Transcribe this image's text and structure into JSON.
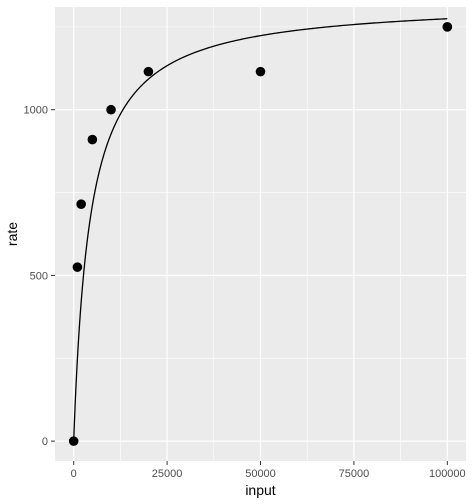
{
  "chart_data": {
    "type": "scatter",
    "title": "",
    "xlabel": "input",
    "ylabel": "rate",
    "xlim": [
      -5000,
      105000
    ],
    "ylim": [
      -60,
      1310
    ],
    "x_ticks": [
      0,
      25000,
      50000,
      75000,
      100000
    ],
    "x_tick_labels": [
      "0",
      "25000",
      "50000",
      "75000",
      "100000"
    ],
    "y_ticks": [
      0,
      500,
      1000
    ],
    "y_tick_labels": [
      "0",
      "500",
      "1000"
    ],
    "grid": true,
    "legend": "none",
    "series": [
      {
        "kind": "points",
        "x": [
          0,
          1000,
          2000,
          5000,
          10000,
          20000,
          50000,
          100000,
          100000
        ],
        "y": [
          0,
          525,
          715,
          910,
          1000,
          1115,
          1115,
          1250,
          1250
        ]
      },
      {
        "kind": "fitted-line",
        "model": "michaelis-menten",
        "params": {
          "Vmax": 1330,
          "Km": 4350
        }
      }
    ],
    "colors": {
      "panel": "#ebebeb",
      "grid_major": "#ffffff",
      "points": "#000000",
      "line": "#000000",
      "tick_text": "#4d4d4d"
    }
  }
}
